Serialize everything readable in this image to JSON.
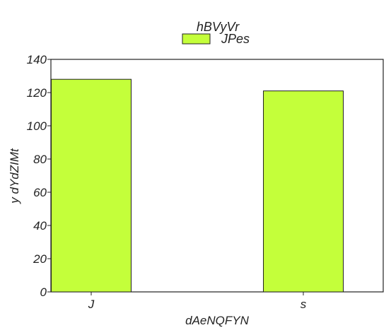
{
  "chart_data": {
    "type": "bar",
    "categories": [
      "J",
      "s"
    ],
    "series": [
      {
        "name": "JPes",
        "values": [
          128,
          121
        ]
      }
    ],
    "xlabel": "dAeNQFYN",
    "ylabel": "y dYdZIMt",
    "ylim": [
      0,
      140
    ],
    "yticks": [
      0,
      20,
      40,
      60,
      80,
      100,
      120,
      140
    ],
    "grid": false,
    "legend": {
      "title": "hBVyVr",
      "placement": "top-center"
    },
    "colors": {
      "bar": "#c4ff3a",
      "edge": "#222222"
    }
  }
}
